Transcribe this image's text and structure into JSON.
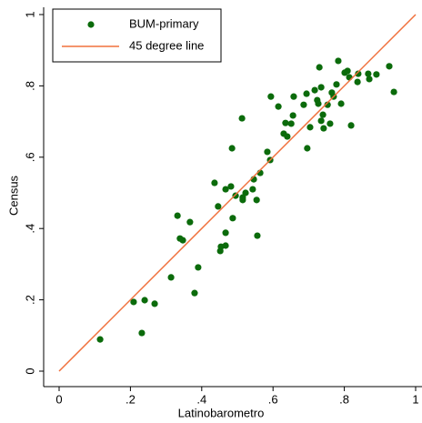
{
  "chart_data": {
    "type": "scatter",
    "xlabel": "Latinobarometro",
    "ylabel": "Census",
    "xlim": [
      0,
      1
    ],
    "ylim": [
      0,
      1
    ],
    "xticks": [
      0,
      {
        "value": 0.2,
        "label": ".2"
      },
      {
        "value": 0.4,
        "label": ".4"
      },
      {
        "value": 0.6,
        "label": ".6"
      },
      {
        "value": 0.8,
        "label": ".8"
      },
      1
    ],
    "yticks": [
      0,
      {
        "value": 0.2,
        "label": ".2"
      },
      {
        "value": 0.4,
        "label": ".4"
      },
      {
        "value": 0.6,
        "label": ".6"
      },
      {
        "value": 0.8,
        "label": ".8"
      },
      1
    ],
    "legend": "top-left",
    "series": [
      {
        "name": "BUM-primary",
        "color": "#0b6b0b",
        "style": "markers",
        "x": [
          0.115,
          0.209,
          0.24,
          0.232,
          0.268,
          0.314,
          0.332,
          0.339,
          0.347,
          0.367,
          0.39,
          0.38,
          0.436,
          0.446,
          0.452,
          0.454,
          0.467,
          0.467,
          0.467,
          0.482,
          0.487,
          0.485,
          0.495,
          0.513,
          0.515,
          0.515,
          0.523,
          0.543,
          0.546,
          0.554,
          0.556,
          0.564,
          0.584,
          0.592,
          0.594,
          0.615,
          0.63,
          0.635,
          0.64,
          0.651,
          0.656,
          0.658,
          0.686,
          0.694,
          0.696,
          0.704,
          0.717,
          0.724,
          0.727,
          0.73,
          0.735,
          0.735,
          0.74,
          0.742,
          0.753,
          0.76,
          0.765,
          0.77,
          0.778,
          0.783,
          0.791,
          0.801,
          0.809,
          0.814,
          0.819,
          0.837,
          0.839,
          0.867,
          0.87,
          0.89,
          0.926,
          0.939
        ],
        "values": [
          0.089,
          0.194,
          0.199,
          0.107,
          0.189,
          0.263,
          0.436,
          0.372,
          0.367,
          0.418,
          0.291,
          0.219,
          0.528,
          0.462,
          0.337,
          0.349,
          0.352,
          0.388,
          0.51,
          0.518,
          0.429,
          0.625,
          0.492,
          0.709,
          0.487,
          0.48,
          0.5,
          0.51,
          0.538,
          0.48,
          0.38,
          0.556,
          0.615,
          0.592,
          0.77,
          0.742,
          0.666,
          0.696,
          0.658,
          0.694,
          0.717,
          0.77,
          0.747,
          0.778,
          0.625,
          0.684,
          0.788,
          0.76,
          0.75,
          0.852,
          0.702,
          0.796,
          0.719,
          0.681,
          0.747,
          0.694,
          0.781,
          0.77,
          0.804,
          0.87,
          0.75,
          0.837,
          0.842,
          0.824,
          0.689,
          0.811,
          0.834,
          0.834,
          0.819,
          0.832,
          0.855,
          0.783
        ]
      },
      {
        "name": "45 degree line",
        "color": "#f0703c",
        "style": "line",
        "x": [
          0,
          1
        ],
        "values": [
          0,
          1
        ]
      }
    ]
  }
}
